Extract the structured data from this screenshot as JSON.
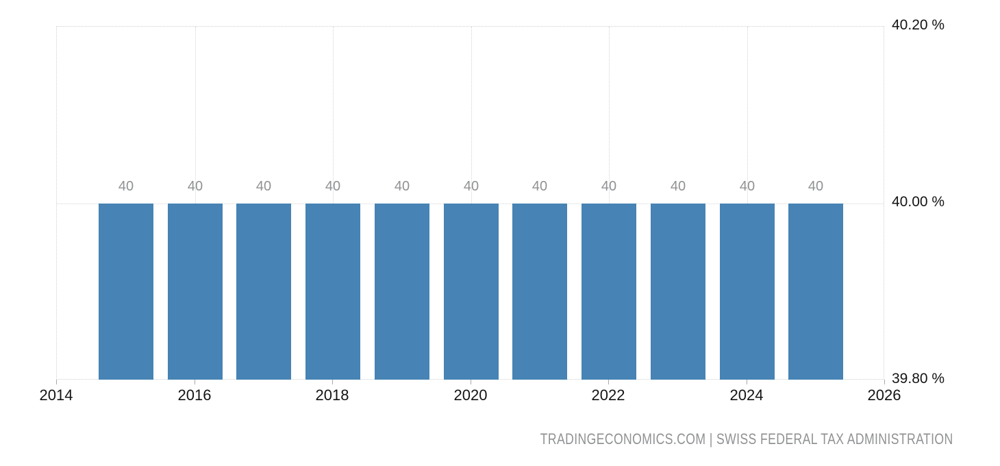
{
  "chart_data": {
    "type": "bar",
    "title": "",
    "xlabel": "",
    "ylabel": "",
    "categories": [
      "2015",
      "2016",
      "2017",
      "2018",
      "2019",
      "2020",
      "2021",
      "2022",
      "2023",
      "2024",
      "2025"
    ],
    "values": [
      40,
      40,
      40,
      40,
      40,
      40,
      40,
      40,
      40,
      40,
      40
    ],
    "bar_labels": [
      "40",
      "40",
      "40",
      "40",
      "40",
      "40",
      "40",
      "40",
      "40",
      "40",
      "40"
    ],
    "x_tick_labels": [
      "2014",
      "2016",
      "2018",
      "2020",
      "2022",
      "2024",
      "2026"
    ],
    "x_tick_years": [
      2014,
      2016,
      2018,
      2020,
      2022,
      2024,
      2026
    ],
    "y_tick_labels": [
      "40.20 %",
      "40.00 %",
      "39.80 %"
    ],
    "y_tick_values": [
      40.2,
      40.0,
      39.8
    ],
    "xlim": [
      2014,
      2026
    ],
    "ylim": [
      39.8,
      40.2
    ],
    "grid": "dotted",
    "legend": "none",
    "bar_color": "#4783b4",
    "label_color": "#8f9193",
    "axis_text_color": "#141414",
    "grid_color": "#d4d4d4"
  },
  "attribution": {
    "text": "TRADINGECONOMICS.COM | SWISS FEDERAL TAX ADMINISTRATION"
  }
}
